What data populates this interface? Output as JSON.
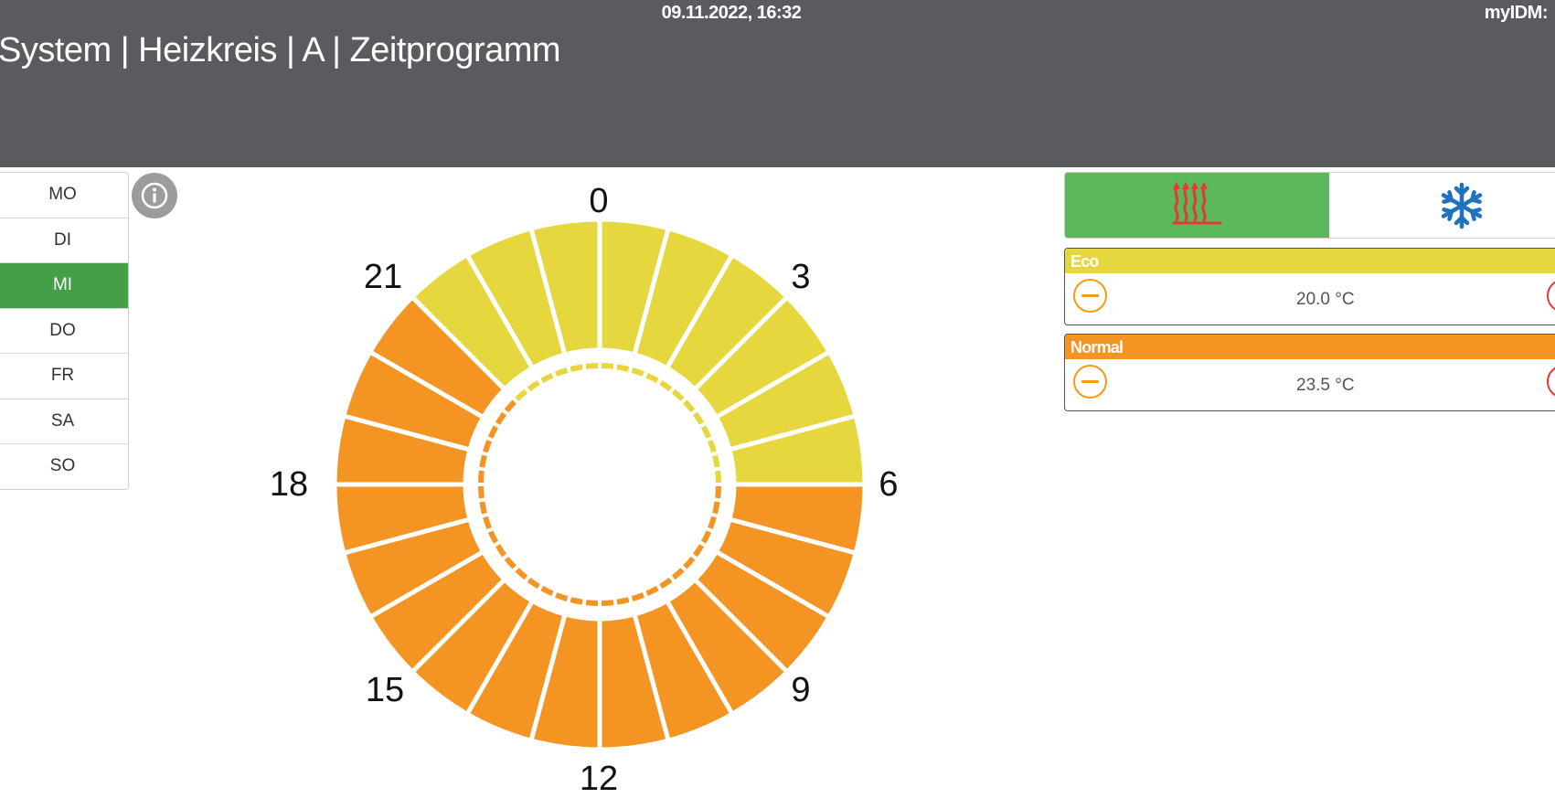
{
  "header": {
    "datetime": "09.11.2022, 16:32",
    "brand": "myIDM:",
    "breadcrumb": "System | Heizkreis | A | Zeitprogramm"
  },
  "days": {
    "items": [
      {
        "label": "MO",
        "active": false
      },
      {
        "label": "DI",
        "active": false
      },
      {
        "label": "MI",
        "active": true
      },
      {
        "label": "DO",
        "active": false
      },
      {
        "label": "FR",
        "active": false
      },
      {
        "label": "SA",
        "active": false
      },
      {
        "label": "SO",
        "active": false
      }
    ]
  },
  "info_icon": "info-icon",
  "schedule": {
    "hour_labels": [
      "0",
      "3",
      "6",
      "9",
      "12",
      "15",
      "18",
      "21"
    ],
    "colors": {
      "eco": "#e6d73e",
      "normal": "#f39423"
    },
    "segments": [
      "eco",
      "eco",
      "eco",
      "eco",
      "eco",
      "eco",
      "eco",
      "eco",
      "eco",
      "eco",
      "eco",
      "eco",
      "normal",
      "normal",
      "normal",
      "normal",
      "normal",
      "normal",
      "normal",
      "normal",
      "normal",
      "normal",
      "normal",
      "normal",
      "normal",
      "normal",
      "normal",
      "normal",
      "normal",
      "normal",
      "normal",
      "normal",
      "normal",
      "normal",
      "normal",
      "normal",
      "normal",
      "normal",
      "normal",
      "normal",
      "normal",
      "normal",
      "eco",
      "eco",
      "eco",
      "eco",
      "eco",
      "eco"
    ]
  },
  "mode": {
    "selected": "heating",
    "heating_icon": "heating-icon",
    "cooling_icon": "snowflake-icon",
    "active_color": "#5cb85c"
  },
  "temperatures": [
    {
      "name": "Eco",
      "value": "20.0 °C",
      "color": "#e6d73e"
    },
    {
      "name": "Normal",
      "value": "23.5 °C",
      "color": "#f39423"
    }
  ]
}
